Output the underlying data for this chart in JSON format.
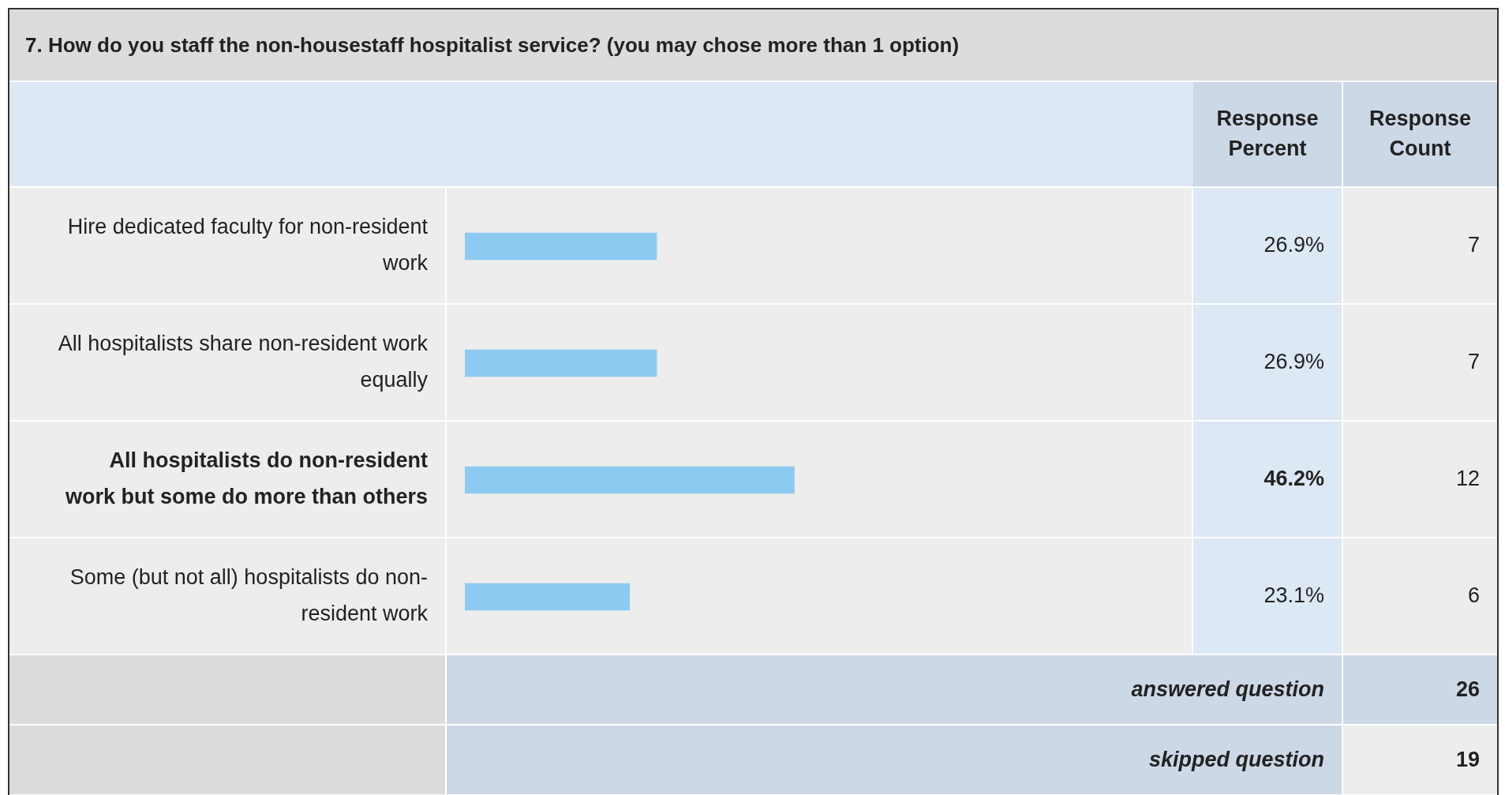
{
  "chart_data": {
    "type": "bar",
    "orientation": "horizontal",
    "title": "7. How do you staff the non-housestaff hospitalist service? (you may chose more than 1 option)",
    "categories": [
      "Hire dedicated faculty for non-resident work",
      "All hospitalists share non-resident work equally",
      "All hospitalists do non-resident work but some do more than others",
      "Some (but not all) hospitalists do non-resident work"
    ],
    "values": [
      26.9,
      26.9,
      46.2,
      23.1
    ],
    "value_labels": [
      "26.9%",
      "26.9%",
      "46.2%",
      "23.1%"
    ],
    "color": "#8ccaf2",
    "tick_labels": false,
    "legend": false,
    "annotations": [
      "Response Percent",
      "Response Count",
      "7",
      "7",
      "12",
      "6",
      "answered question",
      "26",
      "skipped question",
      "19"
    ]
  }
}
